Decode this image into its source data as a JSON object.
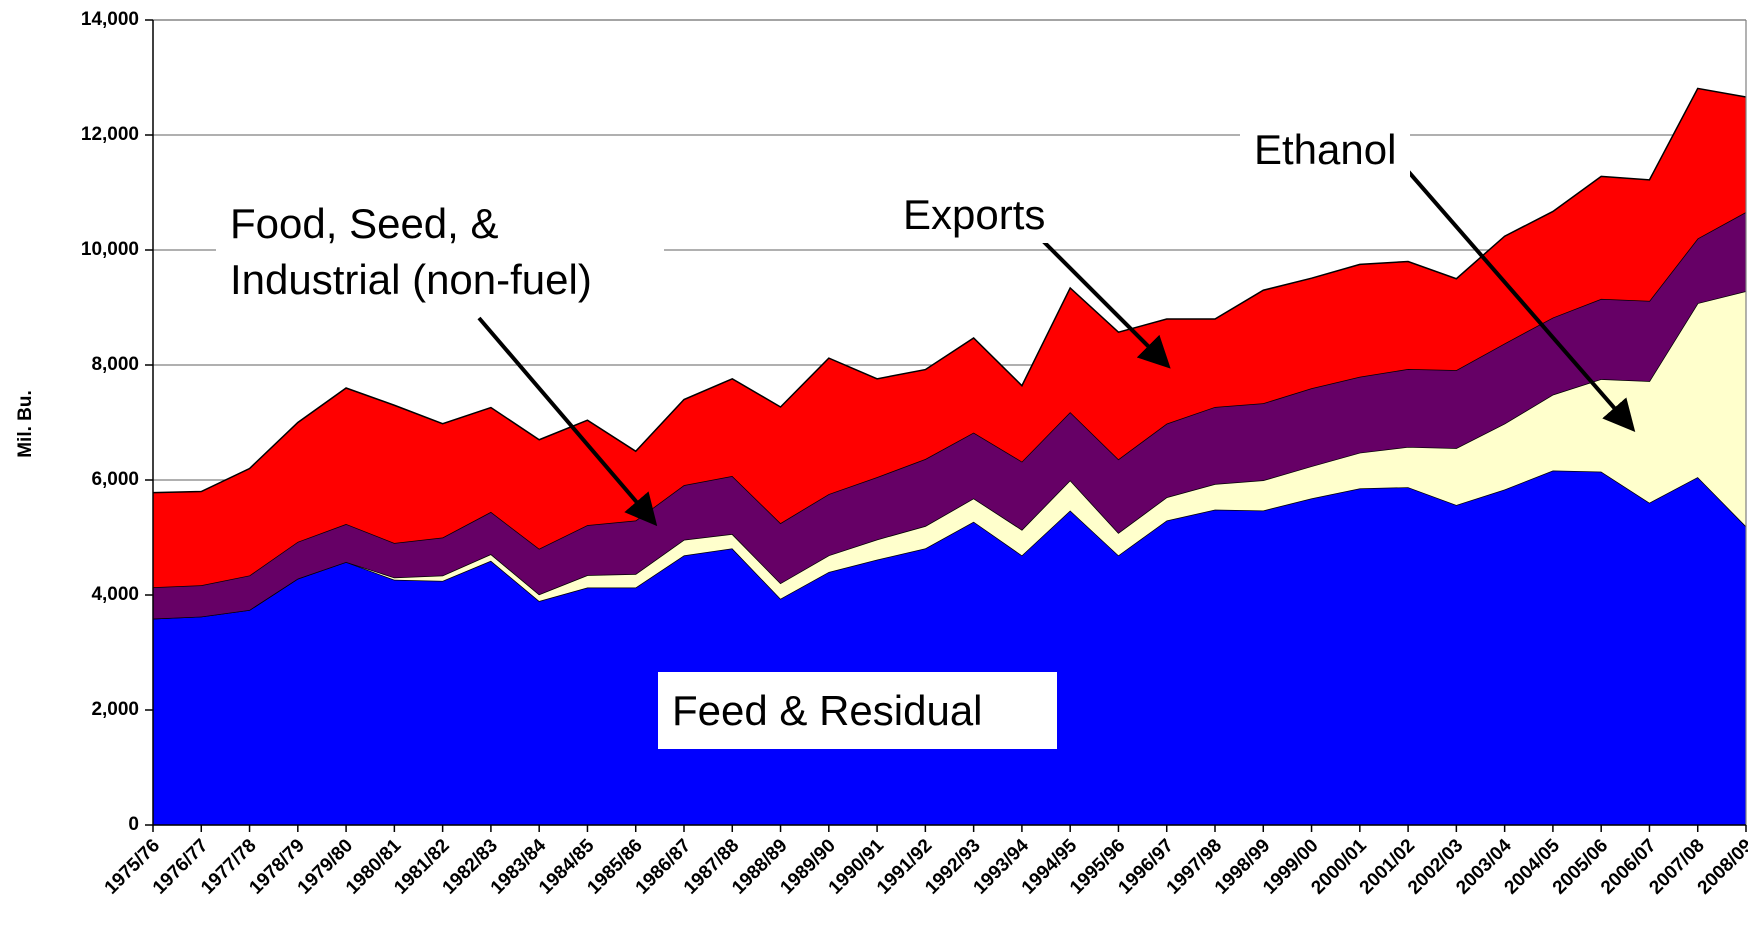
{
  "chart_data": {
    "type": "stacked_area",
    "y_label": "Mil. Bu.",
    "categories": [
      "1975/76",
      "1976/77",
      "1977/78",
      "1978/79",
      "1979/80",
      "1980/81",
      "1981/82",
      "1982/83",
      "1983/84",
      "1984/85",
      "1985/86",
      "1986/87",
      "1987/88",
      "1988/89",
      "1989/90",
      "1990/91",
      "1991/92",
      "1992/93",
      "1993/94",
      "1994/95",
      "1995/96",
      "1996/97",
      "1997/98",
      "1998/99",
      "1999/00",
      "2000/01",
      "2001/02",
      "2002/03",
      "2003/04",
      "2004/05",
      "2005/06",
      "2006/07",
      "2007/08",
      "2008/09"
    ],
    "series": [
      {
        "name": "Feed & Residual",
        "color": "#0000ff",
        "values": [
          3590,
          3625,
          3740,
          4285,
          4575,
          4265,
          4245,
          4595,
          3895,
          4130,
          4130,
          4690,
          4810,
          3935,
          4400,
          4615,
          4810,
          5275,
          4690,
          5470,
          4690,
          5295,
          5485,
          5470,
          5680,
          5855,
          5875,
          5565,
          5835,
          6165,
          6145,
          5605,
          6050,
          5195
        ]
      },
      {
        "name": "Ethanol",
        "color": "#ffffcc",
        "values": [
          0,
          0,
          0,
          0,
          0,
          40,
          95,
          115,
          115,
          215,
          235,
          270,
          250,
          270,
          290,
          350,
          390,
          405,
          445,
          525,
          390,
          405,
          445,
          525,
          560,
          620,
          700,
          990,
          1145,
          1320,
          1610,
          2115,
          3025,
          4090
        ]
      },
      {
        "name": "Food, Seed, & Industrial (non-fuel)",
        "color": "#660066",
        "values": [
          545,
          545,
          600,
          640,
          660,
          600,
          660,
          735,
          795,
          870,
          930,
          950,
          1010,
          1045,
          1065,
          1085,
          1165,
          1145,
          1185,
          1185,
          1280,
          1280,
          1340,
          1340,
          1355,
          1320,
          1355,
          1355,
          1395,
          1340,
          1395,
          1395,
          1125,
          1375
        ]
      },
      {
        "name": "Exports",
        "color": "#ff0000",
        "values": [
          1645,
          1630,
          1860,
          2075,
          2365,
          2395,
          1980,
          1815,
          1895,
          1825,
          1205,
          1490,
          1690,
          2020,
          2365,
          1710,
          1555,
          1645,
          1320,
          2160,
          2210,
          1820,
          1530,
          1965,
          1915,
          1955,
          1870,
          1590,
          1865,
          1845,
          2130,
          2105,
          2610,
          2000
        ]
      }
    ],
    "ylim": [
      0,
      14000
    ],
    "yticks": [
      0,
      {
        "value": 2000,
        "label": "2,000"
      },
      {
        "value": 4000,
        "label": "4,000"
      },
      {
        "value": 6000,
        "label": "6,000"
      },
      {
        "value": 8000,
        "label": "8,000"
      },
      {
        "value": 10000,
        "label": "10,000"
      },
      {
        "value": 12000,
        "label": "12,000"
      },
      {
        "value": 14000,
        "label": "14,000"
      }
    ],
    "grid": true
  }
}
